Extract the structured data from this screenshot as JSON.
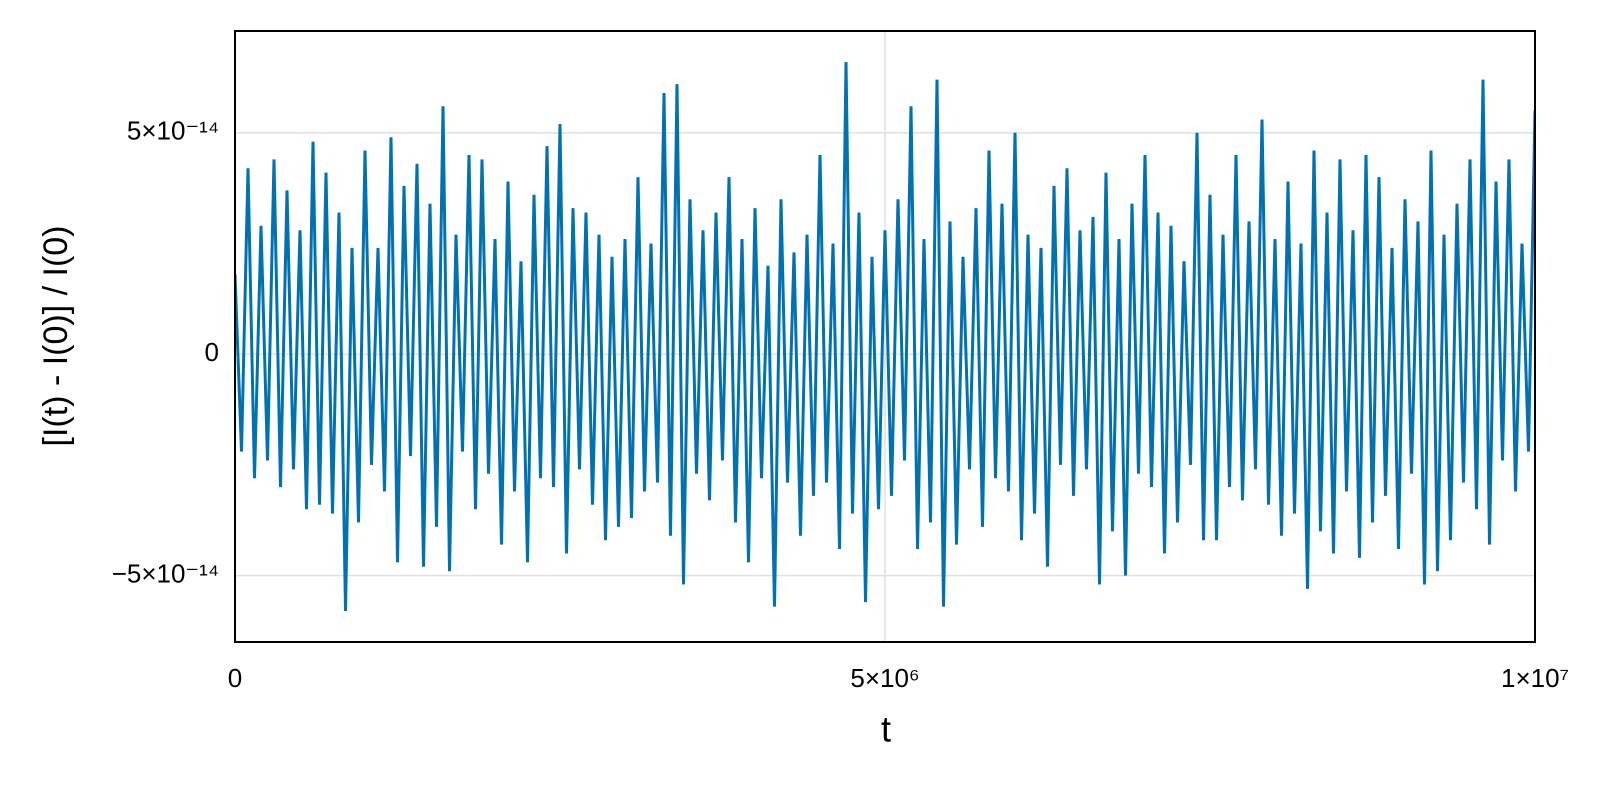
{
  "chart_data": {
    "type": "line",
    "x_label": "t",
    "y_label": "[I(t) - I(0)] / I(0)",
    "xlim": [
      0,
      10000000
    ],
    "ylim": [
      -6.5e-14,
      7.3e-14
    ],
    "xticks": [
      0,
      {
        "value": 5000000,
        "label": "5×10⁶"
      },
      {
        "value": 10000000,
        "label": "1×10⁷"
      }
    ],
    "yticks": [
      {
        "value": -5e-14,
        "label": "−5×10⁻¹⁴"
      },
      0,
      {
        "value": 5e-14,
        "label": "5×10⁻¹⁴"
      }
    ],
    "grid": true,
    "x": [
      0,
      50000,
      100000,
      150000,
      200000,
      250000,
      300000,
      350000,
      400000,
      450000,
      500000,
      550000,
      600000,
      650000,
      700000,
      750000,
      800000,
      850000,
      900000,
      950000,
      1000000,
      1050000,
      1100000,
      1150000,
      1200000,
      1250000,
      1300000,
      1350000,
      1400000,
      1450000,
      1500000,
      1550000,
      1600000,
      1650000,
      1700000,
      1750000,
      1800000,
      1850000,
      1900000,
      1950000,
      2000000,
      2050000,
      2100000,
      2150000,
      2200000,
      2250000,
      2300000,
      2350000,
      2400000,
      2450000,
      2500000,
      2550000,
      2600000,
      2650000,
      2700000,
      2750000,
      2800000,
      2850000,
      2900000,
      2950000,
      3000000,
      3050000,
      3100000,
      3150000,
      3200000,
      3250000,
      3300000,
      3350000,
      3400000,
      3450000,
      3500000,
      3550000,
      3600000,
      3650000,
      3700000,
      3750000,
      3800000,
      3850000,
      3900000,
      3950000,
      4000000,
      4050000,
      4100000,
      4150000,
      4200000,
      4250000,
      4300000,
      4350000,
      4400000,
      4450000,
      4500000,
      4550000,
      4600000,
      4650000,
      4700000,
      4750000,
      4800000,
      4850000,
      4900000,
      4950000,
      5000000,
      5050000,
      5100000,
      5150000,
      5200000,
      5250000,
      5300000,
      5350000,
      5400000,
      5450000,
      5500000,
      5550000,
      5600000,
      5650000,
      5700000,
      5750000,
      5800000,
      5850000,
      5900000,
      5950000,
      6000000,
      6050000,
      6100000,
      6150000,
      6200000,
      6250000,
      6300000,
      6350000,
      6400000,
      6450000,
      6500000,
      6550000,
      6600000,
      6650000,
      6700000,
      6750000,
      6800000,
      6850000,
      6900000,
      6950000,
      7000000,
      7050000,
      7100000,
      7150000,
      7200000,
      7250000,
      7300000,
      7350000,
      7400000,
      7450000,
      7500000,
      7550000,
      7600000,
      7650000,
      7700000,
      7750000,
      7800000,
      7850000,
      7900000,
      7950000,
      8000000,
      8050000,
      8100000,
      8150000,
      8200000,
      8250000,
      8300000,
      8350000,
      8400000,
      8450000,
      8500000,
      8550000,
      8600000,
      8650000,
      8700000,
      8750000,
      8800000,
      8850000,
      8900000,
      8950000,
      9000000,
      9050000,
      9100000,
      9150000,
      9200000,
      9250000,
      9300000,
      9350000,
      9400000,
      9450000,
      9500000,
      9550000,
      9600000,
      9650000,
      9700000,
      9750000,
      9800000,
      9850000,
      9900000,
      9950000,
      10000000
    ],
    "series": [
      {
        "color": "#0072b2",
        "values": [
          1.8e-14,
          -2.2e-14,
          4.2e-14,
          -2.8e-14,
          2.9e-14,
          -2.4e-14,
          4.4e-14,
          -3e-14,
          3.7e-14,
          -2.6e-14,
          2.8e-14,
          -3.5e-14,
          4.8e-14,
          -3.4e-14,
          4.1e-14,
          -3.6e-14,
          3.2e-14,
          -5.8e-14,
          2.4e-14,
          -3.8e-14,
          4.6e-14,
          -2.5e-14,
          2.4e-14,
          -3.1e-14,
          4.9e-14,
          -4.7e-14,
          3.8e-14,
          -2.3e-14,
          4.3e-14,
          -4.8e-14,
          3.4e-14,
          -3.9e-14,
          5.6e-14,
          -4.9e-14,
          2.7e-14,
          -2.2e-14,
          4.5e-14,
          -3.5e-14,
          4.4e-14,
          -2.7e-14,
          2.6e-14,
          -4.3e-14,
          3.9e-14,
          -3.1e-14,
          2.1e-14,
          -4.7e-14,
          3.6e-14,
          -2.8e-14,
          4.7e-14,
          -3e-14,
          5.2e-14,
          -4.5e-14,
          3.3e-14,
          -2.6e-14,
          3.2e-14,
          -3.4e-14,
          2.7e-14,
          -4.2e-14,
          2.2e-14,
          -3.9e-14,
          2.6e-14,
          -3.7e-14,
          4e-14,
          -3.1e-14,
          2.5e-14,
          -2.9e-14,
          5.9e-14,
          -4.1e-14,
          6.1e-14,
          -5.2e-14,
          3.5e-14,
          -2.7e-14,
          2.8e-14,
          -3.3e-14,
          3.2e-14,
          -2.4e-14,
          4e-14,
          -3.8e-14,
          2.6e-14,
          -4.7e-14,
          3.3e-14,
          -2.8e-14,
          2e-14,
          -5.7e-14,
          3.5e-14,
          -2.9e-14,
          2.3e-14,
          -4.1e-14,
          2.7e-14,
          -3.2e-14,
          4.5e-14,
          -2.9e-14,
          2.5e-14,
          -4.4e-14,
          6.6e-14,
          -3.6e-14,
          3.2e-14,
          -5.6e-14,
          2.2e-14,
          -3.5e-14,
          2.8e-14,
          -3.2e-14,
          3.5e-14,
          -2.4e-14,
          5.6e-14,
          -4.4e-14,
          2.6e-14,
          -3.8e-14,
          6.2e-14,
          -5.7e-14,
          3e-14,
          -4.3e-14,
          2.2e-14,
          -2.6e-14,
          3.3e-14,
          -3.9e-14,
          4.6e-14,
          -2.8e-14,
          3.4e-14,
          -3.1e-14,
          5e-14,
          -4.2e-14,
          2.7e-14,
          -3.6e-14,
          2.4e-14,
          -4.8e-14,
          3.8e-14,
          -2.5e-14,
          4.2e-14,
          -3.2e-14,
          2.8e-14,
          -2.6e-14,
          3.1e-14,
          -5.2e-14,
          4.1e-14,
          -4e-14,
          2.6e-14,
          -5e-14,
          3.4e-14,
          -2.7e-14,
          4.5e-14,
          -3e-14,
          3.2e-14,
          -4.5e-14,
          2.9e-14,
          -3.8e-14,
          2.1e-14,
          -2.5e-14,
          5e-14,
          -4.2e-14,
          3.6e-14,
          -4.2e-14,
          2.7e-14,
          -3e-14,
          4.5e-14,
          -3.3e-14,
          3e-14,
          -2.6e-14,
          5.3e-14,
          -3.4e-14,
          2.6e-14,
          -4.1e-14,
          3.9e-14,
          -3.6e-14,
          2.5e-14,
          -5.3e-14,
          4.6e-14,
          -4e-14,
          3.2e-14,
          -4.5e-14,
          4.4e-14,
          -3.1e-14,
          2.8e-14,
          -4.6e-14,
          4.5e-14,
          -3.8e-14,
          4e-14,
          -3.2e-14,
          2.4e-14,
          -4.4e-14,
          3.5e-14,
          -2.7e-14,
          3e-14,
          -5.2e-14,
          4.6e-14,
          -4.9e-14,
          2.7e-14,
          -4.2e-14,
          3.4e-14,
          -2.9e-14,
          4.4e-14,
          -3.5e-14,
          6.2e-14,
          -4.3e-14,
          3.9e-14,
          -2.4e-14,
          4.4e-14,
          -3.1e-14,
          2.5e-14,
          -2.2e-14,
          5.5e-14
        ]
      }
    ]
  }
}
